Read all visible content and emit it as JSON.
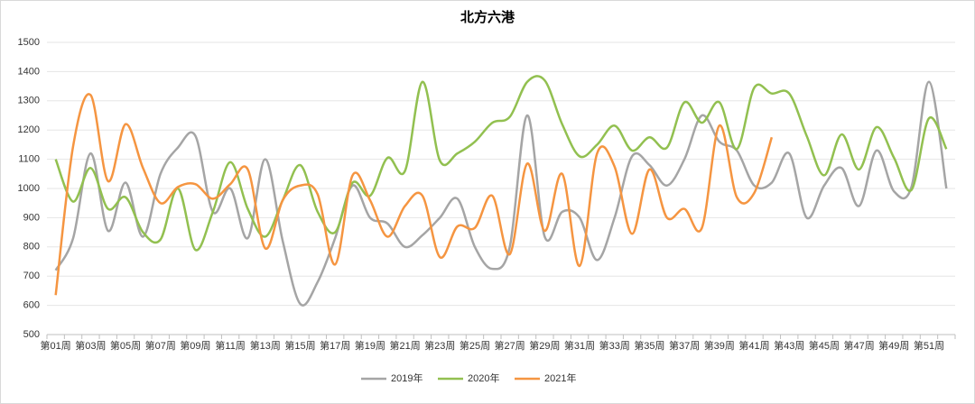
{
  "chart_data": {
    "type": "line",
    "title": "北方六港",
    "categories": [
      "第01周",
      null,
      "第03周",
      null,
      "第05周",
      null,
      "第07周",
      null,
      "第09周",
      null,
      "第11周",
      null,
      "第13周",
      null,
      "第15周",
      null,
      "第17周",
      null,
      "第19周",
      null,
      "第21周",
      null,
      "第23周",
      null,
      "第25周",
      null,
      "第27周",
      null,
      "第29周",
      null,
      "第31周",
      null,
      "第33周",
      null,
      "第35周",
      null,
      "第37周",
      null,
      "第39周",
      null,
      "第41周",
      null,
      "第43周",
      null,
      "第45周",
      null,
      "第47周",
      null,
      "第49周",
      null,
      "第51周",
      null
    ],
    "series": [
      {
        "name": "2019年",
        "color": "#a5a5a5",
        "values": [
          720,
          830,
          1120,
          855,
          1020,
          835,
          1050,
          1140,
          1180,
          920,
          1000,
          830,
          1100,
          820,
          605,
          680,
          830,
          1010,
          900,
          880,
          800,
          840,
          900,
          965,
          800,
          725,
          800,
          1250,
          835,
          920,
          900,
          755,
          900,
          1110,
          1080,
          1010,
          1100,
          1250,
          1160,
          1130,
          1010,
          1020,
          1120,
          900,
          1010,
          1070,
          940,
          1130,
          990,
          1005,
          1365,
          1000
        ]
      },
      {
        "name": "2020年",
        "color": "#92c050",
        "values": [
          1100,
          955,
          1070,
          930,
          970,
          850,
          825,
          1000,
          790,
          920,
          1090,
          930,
          835,
          960,
          1080,
          920,
          850,
          1020,
          975,
          1105,
          1060,
          1365,
          1095,
          1120,
          1160,
          1225,
          1245,
          1365,
          1370,
          1220,
          1110,
          1150,
          1215,
          1130,
          1175,
          1140,
          1295,
          1225,
          1295,
          1135,
          1345,
          1325,
          1325,
          1180,
          1045,
          1185,
          1065,
          1210,
          1105,
          995,
          1240,
          1135
        ]
      },
      {
        "name": "2021年",
        "color": "#f59541",
        "values": [
          635,
          1145,
          1320,
          1025,
          1220,
          1070,
          950,
          1005,
          1015,
          965,
          1015,
          1065,
          795,
          960,
          1010,
          980,
          740,
          1045,
          960,
          835,
          940,
          975,
          765,
          870,
          865,
          975,
          775,
          1085,
          855,
          1050,
          735,
          1120,
          1075,
          845,
          1065,
          900,
          930,
          865,
          1215,
          970,
          985,
          1175,
          null,
          null,
          null,
          null,
          null,
          null,
          null,
          null,
          null,
          null
        ]
      }
    ],
    "ylim": [
      500,
      1500
    ],
    "yticks": [
      500,
      600,
      700,
      800,
      900,
      1000,
      1100,
      1200,
      1300,
      1400,
      1500
    ],
    "grid": true,
    "legend": "bottom"
  }
}
